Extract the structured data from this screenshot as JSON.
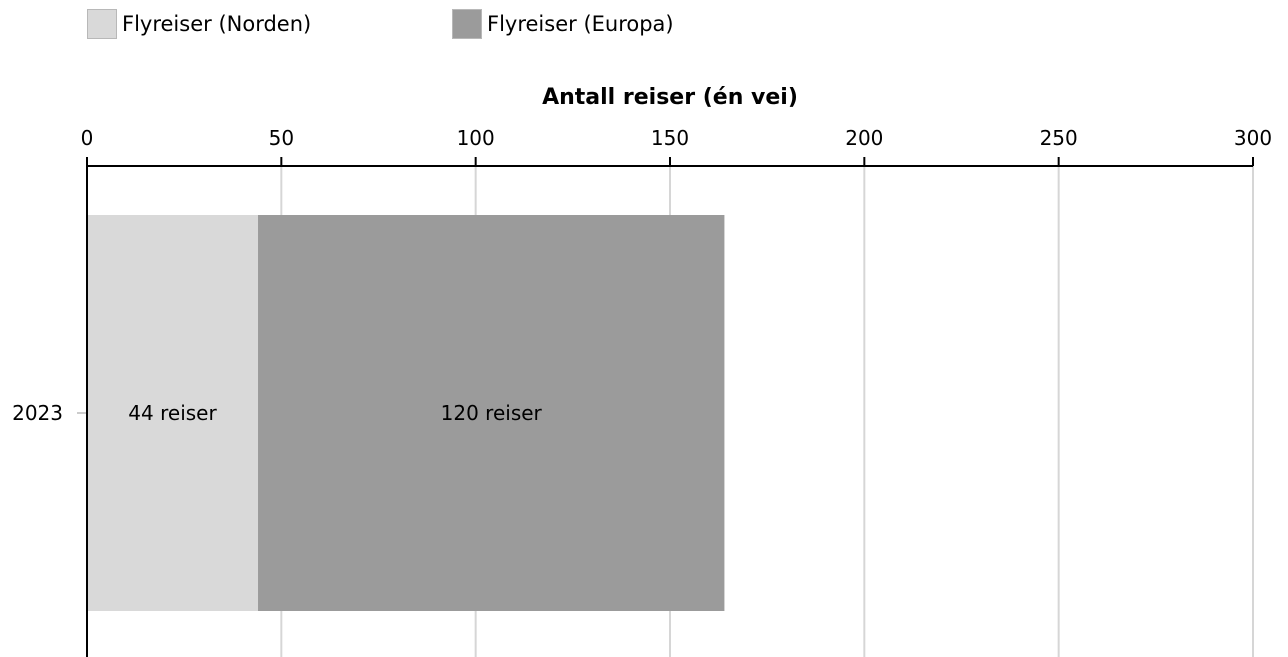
{
  "chart_data": {
    "type": "bar",
    "orientation": "horizontal",
    "stacked": true,
    "categories": [
      "2023"
    ],
    "series": [
      {
        "name": "Flyreiser (Norden)",
        "values": [
          44
        ],
        "color": "#d9d9d9",
        "labels": [
          "44 reiser"
        ]
      },
      {
        "name": "Flyreiser (Europa)",
        "values": [
          120
        ],
        "color": "#9b9b9b",
        "labels": [
          "120 reiser"
        ]
      }
    ],
    "xlabel": "Antall reiser (én vei)",
    "xlim": [
      0,
      300
    ],
    "xticks": [
      0,
      50,
      100,
      150,
      200,
      250,
      300
    ],
    "x_axis_position": "top",
    "grid": true,
    "legend_position": "top-left"
  }
}
